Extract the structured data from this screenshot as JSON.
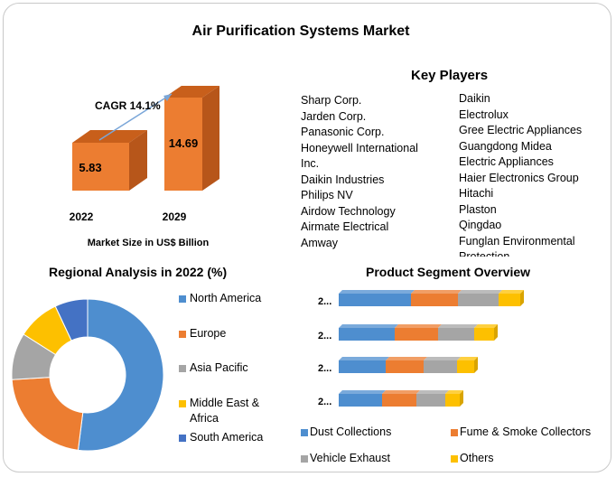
{
  "title": "Air Purification Systems Market",
  "market_size": {
    "caption": "Market Size in US$ Billion",
    "cagr_label": "CAGR 14.1%",
    "bars": [
      {
        "year": "2022",
        "value_label": "5.83"
      },
      {
        "year": "2029",
        "value_label": "14.69"
      }
    ]
  },
  "key_players": {
    "heading": "Key Players",
    "col1": [
      "Sharp Corp.",
      "Jarden Corp.",
      "Panasonic Corp.",
      "Honeywell International",
      "Inc.",
      "Daikin Industries",
      "Philips NV",
      "Airdow Technology",
      "Airmate Electrical",
      "Amway"
    ],
    "col2": [
      "Daikin",
      "Electrolux",
      "Gree Electric Appliances",
      "Guangdong  Midea",
      "Electric Appliances",
      "Haier Electronics Group",
      "Hitachi",
      "Plaston",
      "Qingdao",
      "Funglan  Environmental",
      "Protection"
    ]
  },
  "regional": {
    "title": "Regional Analysis in 2022 (%)",
    "legend": [
      "North America",
      "Europe",
      "Asia Pacific",
      "Middle East &",
      "Africa",
      "South America"
    ]
  },
  "product": {
    "title": "Product Segment Overview",
    "row_labels": [
      "2...",
      "2...",
      "2...",
      "2..."
    ],
    "legend": [
      "Dust Collections",
      "Fume & Smoke Collectors",
      "Vehicle Exhaust",
      "Others"
    ]
  },
  "colors": {
    "blue": "#4e8ecf",
    "orange": "#ec7d31",
    "gray": "#a5a5a5",
    "yellow": "#fdc000",
    "darkblue": "#4472c4",
    "arrow": "#7aa6d8"
  },
  "chart_data": [
    {
      "type": "bar",
      "title": "Market Size in US$ Billion",
      "categories": [
        "2022",
        "2029"
      ],
      "values": [
        5.83,
        14.69
      ],
      "annotations": [
        "CAGR 14.1%"
      ]
    },
    {
      "type": "pie",
      "title": "Regional Analysis in 2022 (%)",
      "categories": [
        "North America",
        "Europe",
        "Asia Pacific",
        "Middle East & Africa",
        "South America"
      ],
      "values": [
        52,
        22,
        10,
        9,
        7
      ],
      "legend": "right"
    },
    {
      "type": "bar",
      "title": "Product Segment Overview",
      "orientation": "horizontal",
      "stacked": true,
      "categories": [
        "2...",
        "2...",
        "2...",
        "2..."
      ],
      "series": [
        {
          "name": "Dust Collections",
          "values": [
            80,
            62,
            52,
            48
          ]
        },
        {
          "name": "Fume & Smoke Collectors",
          "values": [
            52,
            48,
            42,
            38
          ]
        },
        {
          "name": "Vehicle Exhaust",
          "values": [
            45,
            40,
            37,
            32
          ]
        },
        {
          "name": "Others",
          "values": [
            24,
            22,
            19,
            16
          ]
        }
      ],
      "legend": "bottom"
    }
  ]
}
